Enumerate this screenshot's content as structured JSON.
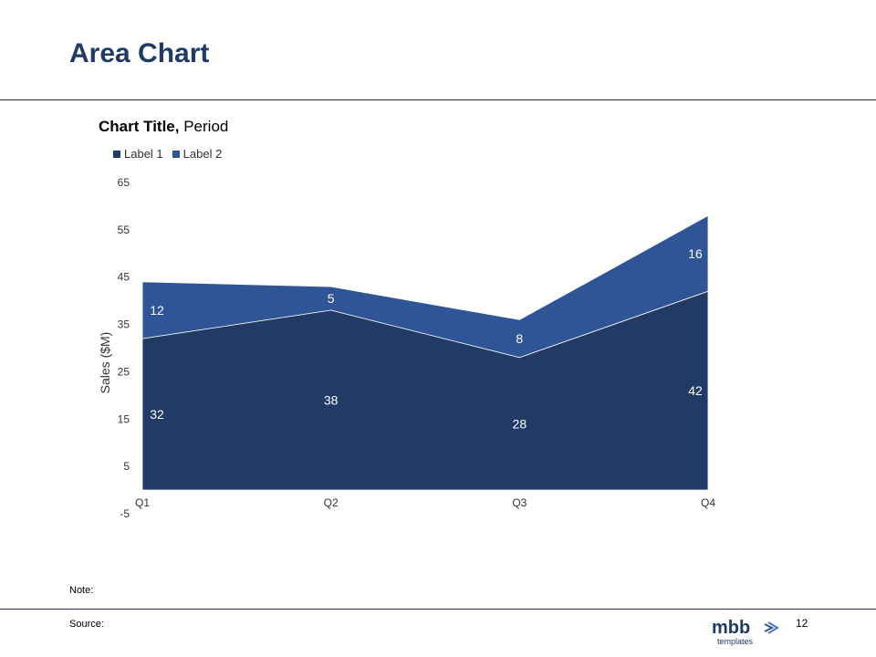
{
  "slide": {
    "title": "Area Chart",
    "note_label": "Note:",
    "source_label": "Source:",
    "page_number": "12",
    "logo_text_main": "mbb",
    "logo_text_sub": "templates"
  },
  "chart_data": {
    "type": "area",
    "title_bold": "Chart Title,",
    "title_rest": "Period",
    "ylabel": "Sales ($M)",
    "xlabel": "",
    "categories": [
      "Q1",
      "Q2",
      "Q3",
      "Q4"
    ],
    "y_ticks": [
      -5,
      5,
      15,
      25,
      35,
      45,
      55,
      65
    ],
    "ylim": [
      -5,
      65
    ],
    "stacked": true,
    "legend_position": "top-left",
    "grid": false,
    "series": [
      {
        "name": "Label 1",
        "values": [
          32,
          38,
          28,
          42
        ],
        "color": "#213a66"
      },
      {
        "name": "Label 2",
        "values": [
          12,
          5,
          8,
          16
        ],
        "color": "#2f5597"
      }
    ],
    "label_color": "#ffffff",
    "axis_text_color": "#333333"
  }
}
